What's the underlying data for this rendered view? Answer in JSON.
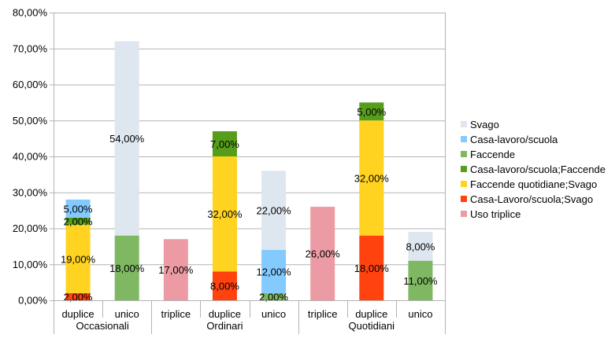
{
  "chart_data": {
    "type": "bar",
    "stacked": true,
    "title": "",
    "xlabel": "",
    "ylabel": "",
    "ylim": [
      0,
      80
    ],
    "yticks": [
      "0,00%",
      "10,00%",
      "20,00%",
      "30,00%",
      "40,00%",
      "50,00%",
      "60,00%",
      "70,00%",
      "80,00%"
    ],
    "grid": true,
    "legend_position": "right",
    "categories": [
      "duplice",
      "unico",
      "triplice",
      "duplice",
      "unico",
      "triplice",
      "duplice",
      "unico"
    ],
    "groups": [
      {
        "name": "Occasionali",
        "span": 2
      },
      {
        "name": "Ordinari",
        "span": 3
      },
      {
        "name": "Quotidiani",
        "span": 3
      }
    ],
    "category_rows": [
      [
        "duplice",
        "unico"
      ],
      [
        "triplice",
        "duplice",
        "unico"
      ],
      [
        "triplice",
        "duplice",
        "unico"
      ]
    ],
    "series": [
      {
        "name": "Uso triplice",
        "color": "#ec9ba4",
        "values": [
          null,
          null,
          17,
          null,
          null,
          26,
          null,
          null
        ]
      },
      {
        "name": "Casa-Lavoro/scuola;Svago",
        "color": "#ff420e",
        "values": [
          2,
          null,
          null,
          8,
          null,
          null,
          18,
          null
        ]
      },
      {
        "name": "Faccende quotidiane;Svago",
        "color": "#ffd320",
        "values": [
          19,
          null,
          null,
          32,
          null,
          null,
          32,
          null
        ]
      },
      {
        "name": "Casa-lavoro/scuola;Faccende",
        "color": "#579d1c",
        "values": [
          2,
          null,
          null,
          7,
          null,
          null,
          5,
          null
        ]
      },
      {
        "name": "Faccende",
        "color": "#7eb862",
        "values": [
          null,
          18,
          null,
          null,
          2,
          null,
          null,
          11
        ]
      },
      {
        "name": "Casa-lavoro/scuola",
        "color": "#83caff",
        "values": [
          5,
          null,
          null,
          null,
          12,
          null,
          null,
          null
        ]
      },
      {
        "name": "Svago",
        "color": "#dee6ef",
        "values": [
          null,
          54,
          null,
          null,
          22,
          null,
          null,
          8
        ]
      }
    ],
    "legend_order": [
      "Svago",
      "Casa-lavoro/scuola",
      "Faccende",
      "Casa-lavoro/scuola;Faccende",
      "Faccende quotidiane;Svago",
      "Casa-Lavoro/scuola;Svago",
      "Uso triplice"
    ]
  }
}
